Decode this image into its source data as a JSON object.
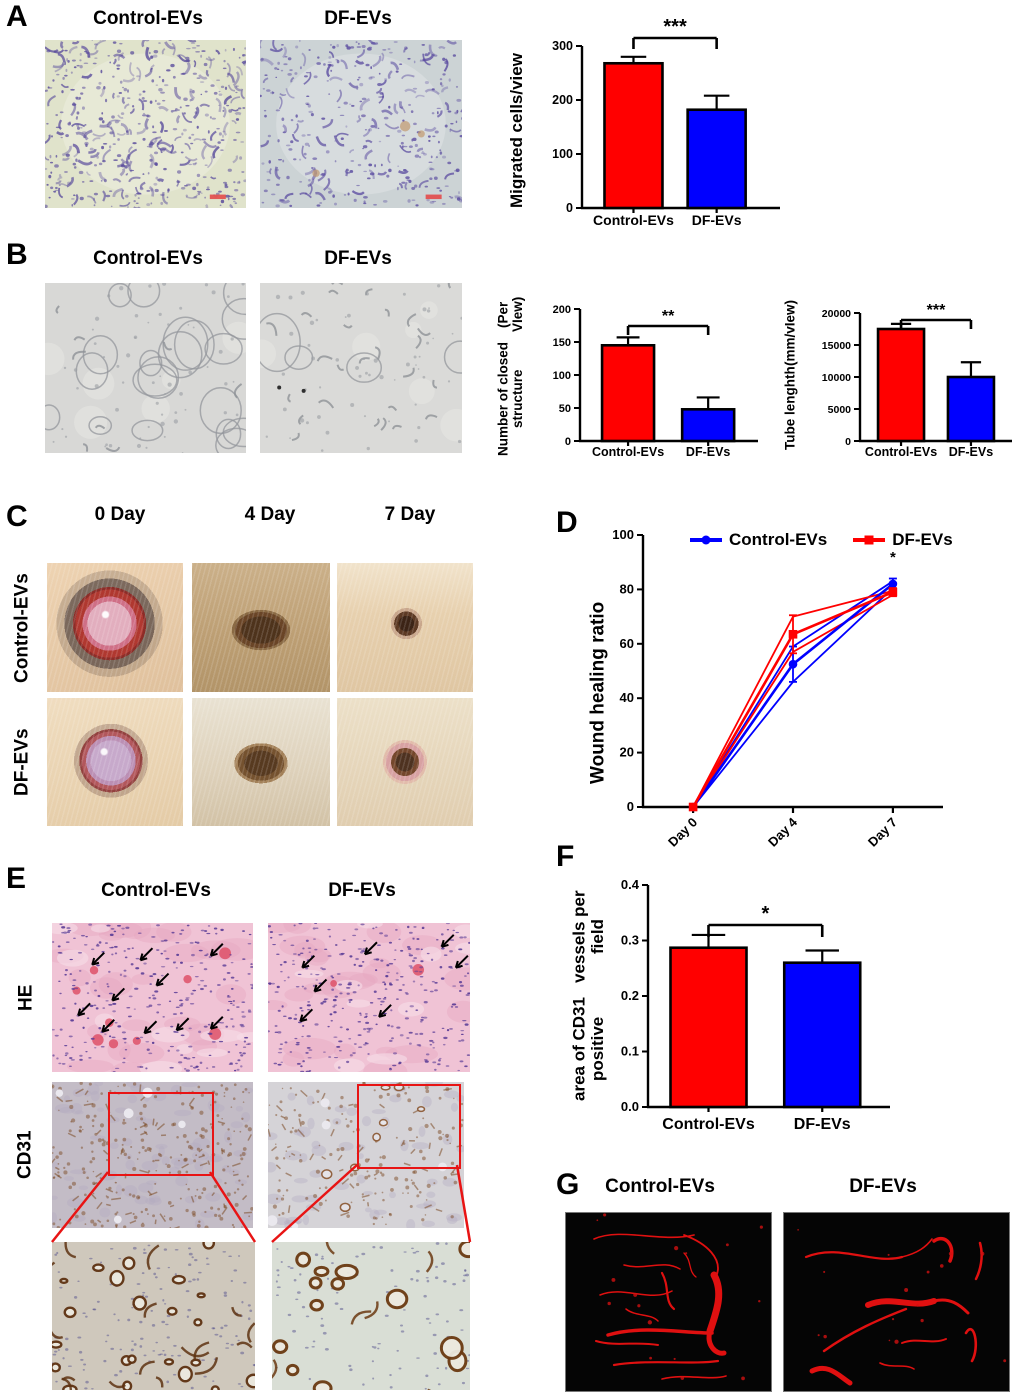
{
  "palette": {
    "red": "#FF0000",
    "blue": "#0000FF",
    "black": "#000000",
    "highlight_red": "#E81414"
  },
  "groups": [
    "Control-EVs",
    "DF-EVs"
  ],
  "panels": {
    "A": {
      "label": "A",
      "image_titles": [
        "Control-EVs",
        "DF-EVs"
      ]
    },
    "B": {
      "label": "B",
      "image_titles": [
        "Control-EVs",
        "DF-EVs"
      ]
    },
    "C": {
      "label": "C",
      "col_titles": [
        "0 Day",
        "4 Day",
        "7 Day"
      ],
      "row_labels": [
        "Control-EVs",
        "DF-EVs"
      ]
    },
    "D": {
      "label": "D"
    },
    "E": {
      "label": "E",
      "col_titles": [
        "Control-EVs",
        "DF-EVs"
      ],
      "row_labels": [
        "HE",
        "CD31"
      ]
    },
    "F": {
      "label": "F"
    },
    "G": {
      "label": "G",
      "image_titles": [
        "Control-EVs",
        "DF-EVs"
      ]
    }
  },
  "chart_data": [
    {
      "id": "migrated-cells",
      "type": "bar",
      "ylabel": "Migrated cells/view",
      "categories": [
        "Control-EVs",
        "DF-EVs"
      ],
      "values": [
        268,
        182
      ],
      "errors": [
        12,
        26
      ],
      "colors": [
        "#FF0000",
        "#0000FF"
      ],
      "ylim": [
        0,
        300
      ],
      "yticks": [
        0,
        100,
        200,
        300
      ],
      "ytick_labels": [
        "0",
        "100",
        "200",
        "300"
      ],
      "significance": "***"
    },
    {
      "id": "closed-structures",
      "type": "bar",
      "ylabel_lines": [
        "Number of closed structure",
        "(Per VIew)"
      ],
      "categories": [
        "Control-EVs",
        "DF-EVs"
      ],
      "values": [
        145,
        48
      ],
      "errors": [
        12,
        18
      ],
      "colors": [
        "#FF0000",
        "#0000FF"
      ],
      "ylim": [
        0,
        200
      ],
      "yticks": [
        0,
        50,
        100,
        150,
        200
      ],
      "ytick_labels": [
        "0",
        "50",
        "100",
        "150",
        "200"
      ],
      "significance": "**"
    },
    {
      "id": "tube-length",
      "type": "bar",
      "ylabel_lines": [
        "Tube lenghth",
        "(mm/vIew)"
      ],
      "categories": [
        "Control-EVs",
        "DF-EVs"
      ],
      "values": [
        17500,
        10000
      ],
      "errors": [
        800,
        2300
      ],
      "colors": [
        "#FF0000",
        "#0000FF"
      ],
      "ylim": [
        0,
        20000
      ],
      "yticks": [
        0,
        5000,
        10000,
        15000,
        20000
      ],
      "ytick_labels": [
        "0",
        "5000",
        "10000",
        "15000",
        "20000"
      ],
      "significance": "***"
    },
    {
      "id": "wound-healing",
      "type": "line",
      "ylabel": "Wound healing ratio",
      "x_labels": [
        "Day 0",
        "Day 4",
        "Day 7"
      ],
      "ylim": [
        0,
        100
      ],
      "yticks": [
        0,
        20,
        40,
        60,
        80,
        100
      ],
      "ytick_labels": [
        "0",
        "20",
        "40",
        "60",
        "80",
        "100"
      ],
      "series": [
        {
          "name": "Control-EVs",
          "color": "#0000FF",
          "marker": "circle",
          "values": [
            0,
            52.5,
            82
          ],
          "errors": [
            0,
            6.5,
            2
          ]
        },
        {
          "name": "DF-EVs",
          "color": "#FF0000",
          "marker": "square",
          "values": [
            0,
            63.5,
            79
          ],
          "errors": [
            0,
            7,
            1.5
          ]
        }
      ],
      "replicates": [
        {
          "color": "#0000FF",
          "values": [
            0,
            59,
            83
          ]
        },
        {
          "color": "#0000FF",
          "values": [
            0,
            46,
            80.5
          ]
        },
        {
          "color": "#FF0000",
          "values": [
            0,
            70,
            79.5
          ]
        },
        {
          "color": "#FF0000",
          "values": [
            0,
            57,
            78
          ]
        }
      ],
      "annotation": {
        "text": "*",
        "x_index": 2,
        "y": 90
      },
      "legend_position": "top"
    },
    {
      "id": "cd31-area",
      "type": "bar",
      "ylabel_lines": [
        "area of CD31 positive",
        "vessels per field"
      ],
      "categories": [
        "Control-EVs",
        "DF-EVs"
      ],
      "values": [
        0.287,
        0.26
      ],
      "errors": [
        0.023,
        0.022
      ],
      "colors": [
        "#FF0000",
        "#0000FF"
      ],
      "ylim": [
        0,
        0.4
      ],
      "yticks": [
        0,
        0.1,
        0.2,
        0.3,
        0.4
      ],
      "ytick_labels": [
        "0.0",
        "0.1",
        "0.2",
        "0.3",
        "0.4"
      ],
      "significance": "*"
    }
  ]
}
